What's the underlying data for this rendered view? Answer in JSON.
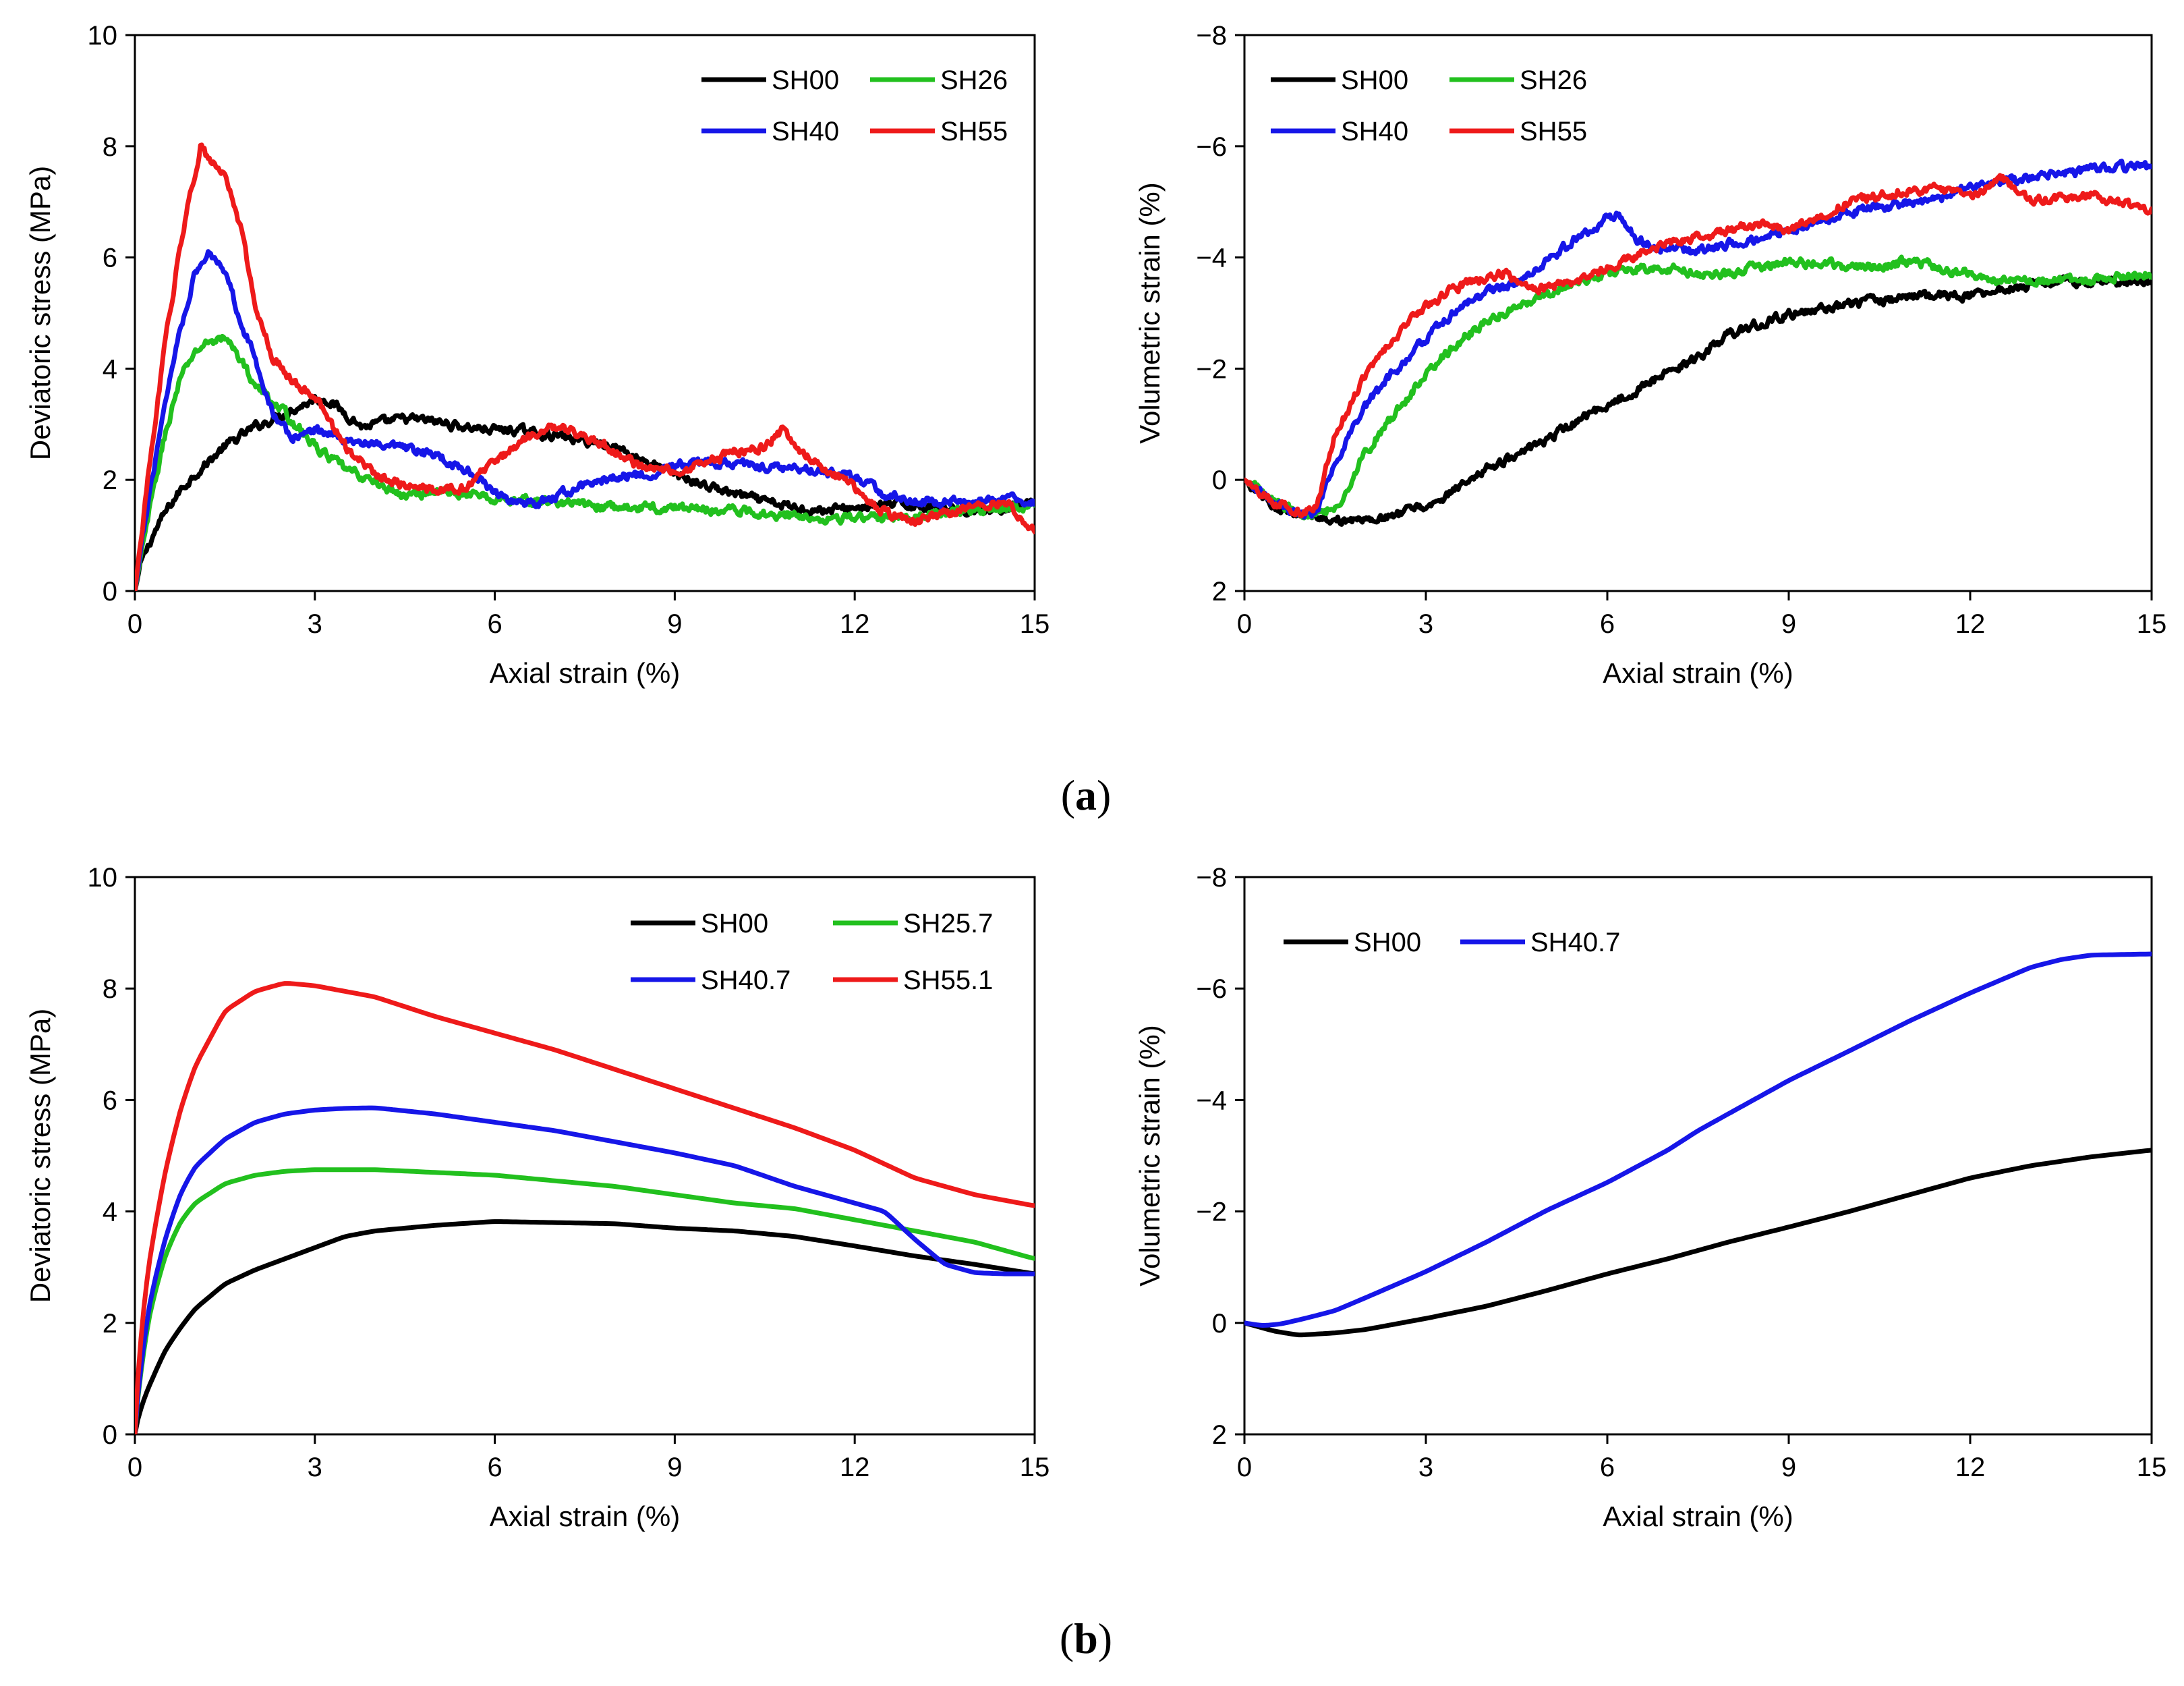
{
  "panel_labels": {
    "a": {
      "open": "(",
      "letter": "a",
      "close": ")"
    },
    "b": {
      "open": "(",
      "letter": "b",
      "close": ")"
    }
  },
  "colors": {
    "SH00": "#000000",
    "SH26": "#22c01e",
    "SH40": "#1616e8",
    "SH55": "#ee1a1a"
  },
  "chart_data": [
    {
      "id": "a-left",
      "type": "line",
      "title": "",
      "xlabel": "Axial strain (%)",
      "ylabel": "Deviatoric stress (MPa)",
      "xlim": [
        0,
        15
      ],
      "ylim": [
        0,
        10
      ],
      "y_inverted": false,
      "xticks": [
        0,
        3,
        6,
        9,
        12,
        15
      ],
      "yticks": [
        0,
        2,
        4,
        6,
        8,
        10
      ],
      "grid": false,
      "legend_position": "top-right",
      "noisy": true,
      "legend_layout": [
        [
          "SH00",
          "SH26"
        ],
        [
          "SH40",
          "SH55"
        ]
      ],
      "series": [
        {
          "name": "SH00",
          "color": "#000000",
          "x": [
            0,
            0.1,
            0.3,
            0.5,
            0.75,
            1,
            1.5,
            2,
            2.5,
            3,
            3.2,
            3.5,
            3.8,
            4,
            4.5,
            5,
            5.5,
            6,
            6.3,
            7,
            7.5,
            8,
            8.5,
            9,
            9.5,
            10,
            10.5,
            11,
            11.5,
            12,
            12.5,
            13,
            13.5,
            14,
            14.5,
            15
          ],
          "y": [
            0,
            0.5,
            1,
            1.4,
            1.8,
            2.1,
            2.6,
            2.95,
            3.2,
            3.45,
            3.45,
            3.2,
            2.95,
            3,
            3.1,
            3.05,
            2.95,
            2.9,
            2.9,
            2.8,
            2.7,
            2.6,
            2.35,
            2.1,
            1.9,
            1.75,
            1.6,
            1.5,
            1.45,
            1.5,
            1.55,
            1.55,
            1.5,
            1.45,
            1.5,
            1.55
          ]
        },
        {
          "name": "SH26",
          "color": "#22c01e",
          "x": [
            0,
            0.25,
            0.5,
            0.75,
            1,
            1.25,
            1.5,
            1.75,
            2,
            2.5,
            3,
            3.5,
            4,
            4.5,
            5,
            5.5,
            6,
            7,
            8,
            9,
            10,
            11,
            12,
            13,
            14,
            15
          ],
          "y": [
            0,
            1.5,
            2.8,
            3.8,
            4.3,
            4.5,
            4.55,
            4.2,
            3.7,
            3.2,
            2.6,
            2.2,
            1.95,
            1.7,
            1.8,
            1.75,
            1.65,
            1.6,
            1.5,
            1.5,
            1.45,
            1.35,
            1.3,
            1.35,
            1.45,
            1.55
          ]
        },
        {
          "name": "SH40",
          "color": "#1616e8",
          "x": [
            0,
            0.25,
            0.5,
            0.75,
            1,
            1.25,
            1.5,
            1.75,
            2,
            2.3,
            2.6,
            3,
            3.5,
            4,
            4.5,
            5,
            5.5,
            6,
            6.5,
            7,
            7.5,
            8,
            8.5,
            9,
            9.5,
            10,
            10.5,
            11,
            11.5,
            12,
            12.5,
            13,
            13.5,
            14,
            14.5,
            15
          ],
          "y": [
            0,
            1.8,
            3.4,
            4.7,
            5.7,
            6.1,
            5.8,
            4.9,
            4.2,
            3.2,
            2.75,
            2.9,
            2.75,
            2.6,
            2.55,
            2.45,
            2.2,
            1.8,
            1.5,
            1.7,
            1.9,
            2.05,
            2.1,
            2.25,
            2.3,
            2.3,
            2.25,
            2.2,
            2.15,
            2.05,
            1.75,
            1.6,
            1.6,
            1.6,
            1.65,
            1.6
          ]
        },
        {
          "name": "SH55",
          "color": "#ee1a1a",
          "x": [
            0,
            0.25,
            0.5,
            0.75,
            1,
            1.1,
            1.25,
            1.5,
            1.75,
            2,
            2.3,
            2.6,
            3,
            3.5,
            4,
            4.5,
            5,
            5.5,
            6,
            6.5,
            7,
            7.5,
            8,
            8.5,
            9,
            9.5,
            10,
            10.5,
            10.8,
            11,
            11.5,
            12,
            12.5,
            13,
            13.5,
            14,
            14.5,
            15
          ],
          "y": [
            0,
            2.3,
            4.4,
            6.2,
            7.5,
            8.05,
            7.7,
            7.5,
            6.6,
            5.2,
            4.2,
            3.8,
            3.5,
            2.6,
            2.1,
            1.9,
            1.8,
            1.85,
            2.3,
            2.75,
            2.95,
            2.8,
            2.5,
            2.2,
            2.15,
            2.3,
            2.5,
            2.6,
            2.9,
            2.55,
            2.2,
            1.85,
            1.4,
            1.25,
            1.4,
            1.55,
            1.6,
            1.05
          ]
        }
      ]
    },
    {
      "id": "a-right",
      "type": "line",
      "title": "",
      "xlabel": "Axial strain (%)",
      "ylabel": "Volumetric strain (%)",
      "xlim": [
        0,
        15
      ],
      "ylim": [
        2,
        -8
      ],
      "y_inverted": true,
      "xticks": [
        0,
        3,
        6,
        9,
        12,
        15
      ],
      "yticks": [
        2,
        0,
        -2,
        -4,
        -6,
        -8
      ],
      "ytick_labels": [
        "2",
        "0",
        "−2",
        "−4",
        "−6",
        "−8"
      ],
      "grid": false,
      "legend_position": "top-left",
      "noisy": true,
      "legend_layout": [
        [
          "SH00",
          "SH26"
        ],
        [
          "SH40",
          "SH55"
        ]
      ],
      "series": [
        {
          "name": "SH00",
          "color": "#000000",
          "x": [
            0,
            0.5,
            1,
            1.5,
            2,
            2.5,
            3,
            3.3,
            3.6,
            4,
            4.5,
            5,
            5.5,
            6,
            6.5,
            7,
            7.5,
            8,
            8.5,
            9,
            9.5,
            10,
            10.5,
            11,
            11.5,
            12,
            12.5,
            13,
            13.5,
            14,
            14.5,
            15
          ],
          "y": [
            0,
            0.45,
            0.65,
            0.72,
            0.73,
            0.65,
            0.48,
            0.32,
            0.02,
            -0.2,
            -0.42,
            -0.72,
            -1.05,
            -1.35,
            -1.62,
            -1.92,
            -2.2,
            -2.6,
            -2.82,
            -2.98,
            -3.05,
            -3.15,
            -3.22,
            -3.28,
            -3.32,
            -3.32,
            -3.42,
            -3.52,
            -3.58,
            -3.58,
            -3.56,
            -3.55
          ]
        },
        {
          "name": "SH26",
          "color": "#22c01e",
          "x": [
            0,
            0.5,
            1,
            1.3,
            1.6,
            2,
            2.5,
            3,
            3.5,
            4,
            4.5,
            5,
            5.5,
            6,
            6.5,
            7,
            7.5,
            8,
            8.5,
            9,
            9.5,
            10,
            10.5,
            11,
            11.5,
            12,
            12.5,
            13,
            13.5,
            14,
            14.5,
            15
          ],
          "y": [
            0,
            0.4,
            0.65,
            0.62,
            0.35,
            -0.5,
            -1.2,
            -1.9,
            -2.45,
            -2.85,
            -3.1,
            -3.3,
            -3.55,
            -3.7,
            -3.82,
            -3.82,
            -3.7,
            -3.7,
            -3.82,
            -3.92,
            -3.92,
            -3.82,
            -3.82,
            -3.92,
            -3.82,
            -3.7,
            -3.6,
            -3.55,
            -3.58,
            -3.6,
            -3.65,
            -3.72
          ]
        },
        {
          "name": "SH40",
          "color": "#1616e8",
          "x": [
            0,
            0.5,
            1,
            1.2,
            1.5,
            2,
            2.5,
            3,
            3.5,
            4,
            4.5,
            5,
            5.5,
            6,
            6.2,
            6.5,
            7,
            7.5,
            8,
            8.5,
            9,
            9.5,
            10,
            10.5,
            11,
            11.5,
            12,
            12.5,
            13,
            13.5,
            14,
            14.5,
            15
          ],
          "y": [
            0,
            0.42,
            0.68,
            0.58,
            -0.3,
            -1.3,
            -2,
            -2.55,
            -3.05,
            -3.35,
            -3.55,
            -3.95,
            -4.35,
            -4.72,
            -4.75,
            -4.3,
            -4.15,
            -4.1,
            -4.25,
            -4.35,
            -4.5,
            -4.65,
            -4.8,
            -4.9,
            -4.98,
            -5.05,
            -5.28,
            -5.35,
            -5.45,
            -5.5,
            -5.58,
            -5.62,
            -5.6
          ]
        },
        {
          "name": "SH55",
          "color": "#ee1a1a",
          "x": [
            0,
            0.5,
            1,
            1.2,
            1.5,
            2,
            2.5,
            3,
            3.5,
            4,
            4.3,
            4.6,
            5,
            5.5,
            6,
            6.5,
            7,
            7.5,
            8,
            8.5,
            9,
            9.5,
            10,
            10.5,
            11,
            11.5,
            12,
            12.3,
            12.5,
            13,
            13.5,
            14,
            14.5,
            15
          ],
          "y": [
            0,
            0.4,
            0.6,
            0.4,
            -0.8,
            -1.9,
            -2.6,
            -3.15,
            -3.45,
            -3.65,
            -3.72,
            -3.45,
            -3.45,
            -3.55,
            -3.8,
            -4.05,
            -4.25,
            -4.35,
            -4.5,
            -4.6,
            -4.5,
            -4.72,
            -5.02,
            -5.12,
            -5.22,
            -5.25,
            -5.1,
            -5.25,
            -5.45,
            -5.05,
            -5.05,
            -5.15,
            -4.95,
            -4.85
          ]
        }
      ]
    },
    {
      "id": "b-left",
      "type": "line",
      "title": "",
      "xlabel": "Axial strain (%)",
      "ylabel": "Deviatoric stress (MPa)",
      "xlim": [
        0,
        15
      ],
      "ylim": [
        0,
        10
      ],
      "y_inverted": false,
      "xticks": [
        0,
        3,
        6,
        9,
        12,
        15
      ],
      "yticks": [
        0,
        2,
        4,
        6,
        8,
        10
      ],
      "grid": false,
      "legend_position": "top-right",
      "noisy": false,
      "legend_layout": [
        [
          "SH00",
          "SH25.7"
        ],
        [
          "SH40.7",
          "SH55.1"
        ]
      ],
      "series": [
        {
          "name": "SH00",
          "color": "#000000",
          "x": [
            0,
            0.1,
            0.25,
            0.5,
            0.75,
            1,
            1.5,
            2,
            2.5,
            3,
            3.5,
            4,
            5,
            6,
            7,
            8,
            9,
            10,
            11,
            12,
            13,
            14,
            15
          ],
          "y": [
            0,
            0.5,
            0.9,
            1.5,
            1.9,
            2.25,
            2.7,
            2.95,
            3.15,
            3.35,
            3.55,
            3.65,
            3.75,
            3.82,
            3.8,
            3.78,
            3.7,
            3.65,
            3.55,
            3.38,
            3.2,
            3.05,
            2.88
          ]
        },
        {
          "name": "SH25.7",
          "color": "#22c01e",
          "x": [
            0,
            0.1,
            0.25,
            0.5,
            0.75,
            1,
            1.5,
            2,
            2.5,
            3,
            4,
            5,
            6,
            7,
            8,
            9,
            10,
            11,
            12,
            13,
            14,
            15
          ],
          "y": [
            0,
            1.2,
            2.2,
            3.2,
            3.8,
            4.15,
            4.5,
            4.65,
            4.72,
            4.75,
            4.75,
            4.7,
            4.65,
            4.55,
            4.45,
            4.3,
            4.15,
            4.05,
            3.85,
            3.65,
            3.45,
            3.15
          ]
        },
        {
          "name": "SH40.7",
          "color": "#1616e8",
          "x": [
            0,
            0.1,
            0.25,
            0.5,
            0.75,
            1,
            1.5,
            2,
            2.5,
            3,
            3.5,
            4,
            5,
            6,
            7,
            8,
            9,
            10,
            11,
            12,
            12.5,
            13,
            13.5,
            14,
            14.5,
            15
          ],
          "y": [
            0,
            1.3,
            2.4,
            3.5,
            4.3,
            4.8,
            5.3,
            5.6,
            5.75,
            5.82,
            5.85,
            5.86,
            5.75,
            5.6,
            5.45,
            5.25,
            5.05,
            4.82,
            4.45,
            4.15,
            4.0,
            3.5,
            3.05,
            2.9,
            2.88,
            2.88
          ]
        },
        {
          "name": "SH55.1",
          "color": "#ee1a1a",
          "x": [
            0,
            0.1,
            0.25,
            0.5,
            0.75,
            1,
            1.5,
            2,
            2.5,
            3,
            4,
            5,
            6,
            7,
            8,
            9,
            10,
            11,
            12,
            13,
            14,
            15
          ],
          "y": [
            0,
            1.9,
            3.2,
            4.7,
            5.8,
            6.6,
            7.6,
            7.95,
            8.1,
            8.05,
            7.85,
            7.5,
            7.2,
            6.9,
            6.55,
            6.2,
            5.85,
            5.5,
            5.1,
            4.6,
            4.3,
            4.1
          ]
        }
      ]
    },
    {
      "id": "b-right",
      "type": "line",
      "title": "",
      "xlabel": "Axial strain (%)",
      "ylabel": "Volumetric strain (%)",
      "xlim": [
        0,
        15
      ],
      "ylim": [
        2,
        -8
      ],
      "y_inverted": true,
      "xticks": [
        0,
        3,
        6,
        9,
        12,
        15
      ],
      "yticks": [
        2,
        0,
        -2,
        -4,
        -6,
        -8
      ],
      "ytick_labels": [
        "2",
        "0",
        "−2",
        "−4",
        "−6",
        "−8"
      ],
      "grid": false,
      "legend_position": "top-left",
      "noisy": false,
      "legend_layout": [
        [
          "SH00",
          "SH40.7"
        ]
      ],
      "series": [
        {
          "name": "SH00",
          "color": "#000000",
          "x": [
            0,
            0.5,
            0.9,
            1.5,
            2,
            3,
            4,
            5,
            6,
            7,
            8,
            9,
            10,
            11,
            12,
            13,
            14,
            15
          ],
          "y": [
            0,
            0.15,
            0.22,
            0.18,
            0.12,
            -0.08,
            -0.3,
            -0.58,
            -0.88,
            -1.15,
            -1.45,
            -1.72,
            -2.0,
            -2.3,
            -2.6,
            -2.82,
            -2.98,
            -3.1
          ]
        },
        {
          "name": "SH40.7",
          "color": "#1616e8",
          "x": [
            0,
            0.3,
            0.6,
            1,
            1.5,
            2,
            3,
            4,
            5,
            6,
            7,
            7.5,
            8,
            9,
            10,
            11,
            12,
            12.5,
            13,
            13.5,
            14,
            15
          ],
          "y": [
            0,
            0.05,
            0.02,
            -0.08,
            -0.22,
            -0.45,
            -0.92,
            -1.45,
            -2.02,
            -2.52,
            -3.1,
            -3.45,
            -3.75,
            -4.35,
            -4.88,
            -5.42,
            -5.92,
            -6.15,
            -6.38,
            -6.52,
            -6.6,
            -6.62
          ]
        }
      ]
    }
  ]
}
